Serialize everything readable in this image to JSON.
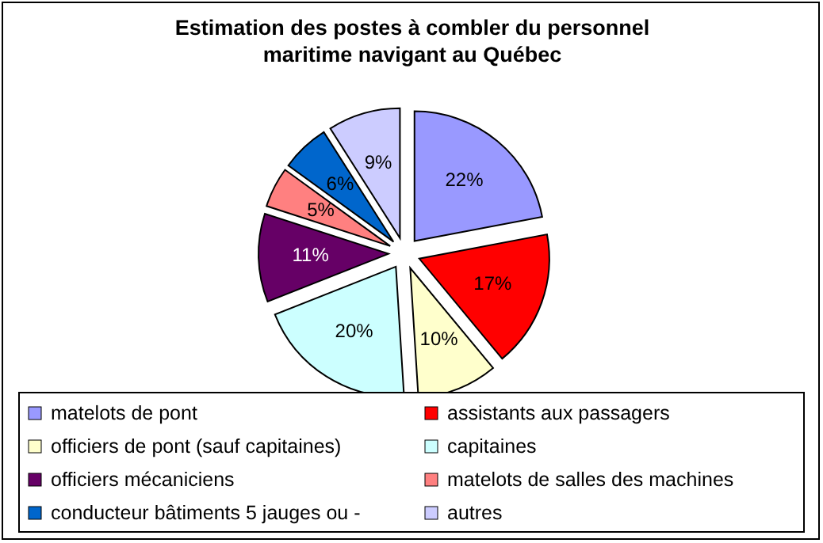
{
  "chart_data": {
    "type": "pie",
    "title": "Estimation des postes à combler du personnel maritime navigant au Québec",
    "categories": [
      "matelots de pont",
      "assistants aux passagers",
      "officiers de pont (sauf capitaines)",
      "capitaines",
      "officiers mécaniciens",
      "matelots de salles des machines",
      "conducteur bâtiments 5 jauges ou -",
      "autres"
    ],
    "values": [
      22,
      17,
      10,
      20,
      11,
      5,
      6,
      9
    ],
    "colors": [
      "#9999ff",
      "#ff0000",
      "#ffffcc",
      "#ccffff",
      "#660066",
      "#ff8080",
      "#0066cc",
      "#ccccff"
    ],
    "value_labels": [
      "22%",
      "17%",
      "10%",
      "20%",
      "11%",
      "5%",
      "6%",
      "9%"
    ],
    "legend": "bottom"
  }
}
